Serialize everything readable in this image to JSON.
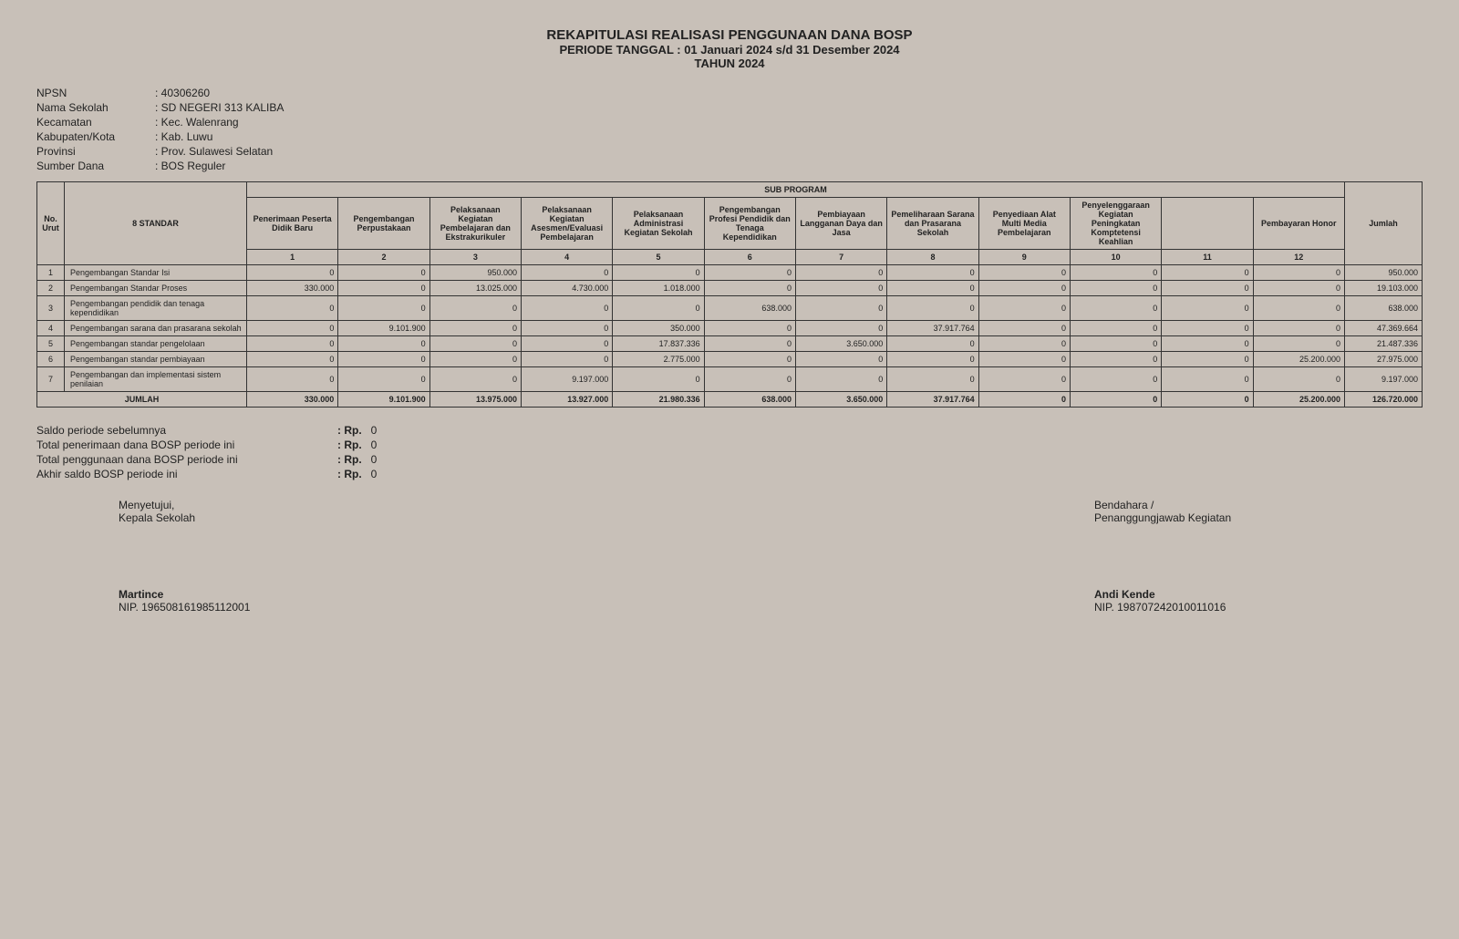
{
  "title": {
    "main": "REKAPITULASI REALISASI PENGGUNAAN DANA BOSP",
    "period": "PERIODE TANGGAL : 01 Januari 2024 s/d 31 Desember 2024",
    "year": "TAHUN 2024"
  },
  "meta": {
    "npsn_label": "NPSN",
    "npsn": "40306260",
    "nama_label": "Nama Sekolah",
    "nama": "SD NEGERI 313 KALIBA",
    "kec_label": "Kecamatan",
    "kec": "Kec. Walenrang",
    "kab_label": "Kabupaten/Kota",
    "kab": "Kab. Luwu",
    "prov_label": "Provinsi",
    "prov": "Prov. Sulawesi Selatan",
    "dana_label": "Sumber Dana",
    "dana": "BOS Reguler"
  },
  "headers": {
    "no": "No. Urut",
    "standar": "8 STANDAR",
    "sub": "SUB PROGRAM",
    "c1": "Penerimaan Peserta Didik Baru",
    "c2": "Pengembangan Perpustakaan",
    "c3": "Pelaksanaan Kegiatan Pembelajaran dan Ekstrakurikuler",
    "c4": "Pelaksanaan Kegiatan Asesmen/Evaluasi Pembelajaran",
    "c5": "Pelaksanaan Administrasi Kegiatan Sekolah",
    "c6": "Pengembangan Profesi Pendidik dan Tenaga Kependidikan",
    "c7": "Pembiayaan Langganan Daya dan Jasa",
    "c8": "Pemeliharaan Sarana dan Prasarana Sekolah",
    "c9": "Penyediaan Alat Multi Media Pembelajaran",
    "c10": "Penyelenggaraan Kegiatan Peningkatan Komptetensi Keahlian",
    "c11": "",
    "c12": "Pembayaran Honor",
    "jumlah": "Jumlah",
    "n1": "1",
    "n2": "2",
    "n3": "3",
    "n4": "4",
    "n5": "5",
    "n6": "6",
    "n7": "7",
    "n8": "8",
    "n9": "9",
    "n10": "10",
    "n11": "11",
    "n12": "12"
  },
  "rows": [
    {
      "no": "1",
      "name": "Pengembangan Standar Isi",
      "v": [
        "0",
        "0",
        "950.000",
        "0",
        "0",
        "0",
        "0",
        "0",
        "0",
        "0",
        "0",
        "0"
      ],
      "sum": "950.000"
    },
    {
      "no": "2",
      "name": "Pengembangan Standar Proses",
      "v": [
        "330.000",
        "0",
        "13.025.000",
        "4.730.000",
        "1.018.000",
        "0",
        "0",
        "0",
        "0",
        "0",
        "0",
        "0"
      ],
      "sum": "19.103.000"
    },
    {
      "no": "3",
      "name": "Pengembangan pendidik dan tenaga kependidikan",
      "v": [
        "0",
        "0",
        "0",
        "0",
        "0",
        "638.000",
        "0",
        "0",
        "0",
        "0",
        "0",
        "0"
      ],
      "sum": "638.000"
    },
    {
      "no": "4",
      "name": "Pengembangan sarana dan prasarana sekolah",
      "v": [
        "0",
        "9.101.900",
        "0",
        "0",
        "350.000",
        "0",
        "0",
        "37.917.764",
        "0",
        "0",
        "0",
        "0"
      ],
      "sum": "47.369.664"
    },
    {
      "no": "5",
      "name": "Pengembangan standar pengelolaan",
      "v": [
        "0",
        "0",
        "0",
        "0",
        "17.837.336",
        "0",
        "3.650.000",
        "0",
        "0",
        "0",
        "0",
        "0"
      ],
      "sum": "21.487.336"
    },
    {
      "no": "6",
      "name": "Pengembangan standar pembiayaan",
      "v": [
        "0",
        "0",
        "0",
        "0",
        "2.775.000",
        "0",
        "0",
        "0",
        "0",
        "0",
        "0",
        "25.200.000"
      ],
      "sum": "27.975.000"
    },
    {
      "no": "7",
      "name": "Pengembangan dan implementasi sistem penilaian",
      "v": [
        "0",
        "0",
        "0",
        "9.197.000",
        "0",
        "0",
        "0",
        "0",
        "0",
        "0",
        "0",
        "0"
      ],
      "sum": "9.197.000"
    }
  ],
  "total": {
    "label": "JUMLAH",
    "v": [
      "330.000",
      "9.101.900",
      "13.975.000",
      "13.927.000",
      "21.980.336",
      "638.000",
      "3.650.000",
      "37.917.764",
      "0",
      "0",
      "0",
      "25.200.000"
    ],
    "sum": "126.720.000"
  },
  "summary": {
    "s1": "Saldo periode sebelumnya",
    "s1v": "0",
    "s2": "Total penerimaan dana BOSP periode ini",
    "s2v": "0",
    "s3": "Total penggunaan dana BOSP periode ini",
    "s3v": "0",
    "s4": "Akhir saldo BOSP periode ini",
    "s4v": "0",
    "rp": ": Rp."
  },
  "sign": {
    "left_role1": "Menyetujui,",
    "left_role2": "Kepala Sekolah",
    "left_name": "Martince",
    "left_nip": "NIP. 196508161985112001",
    "right_role1": "Bendahara /",
    "right_role2": "Penanggungjawab Kegiatan",
    "right_name": "Andi Kende",
    "right_nip": "NIP. 198707242010011016"
  }
}
